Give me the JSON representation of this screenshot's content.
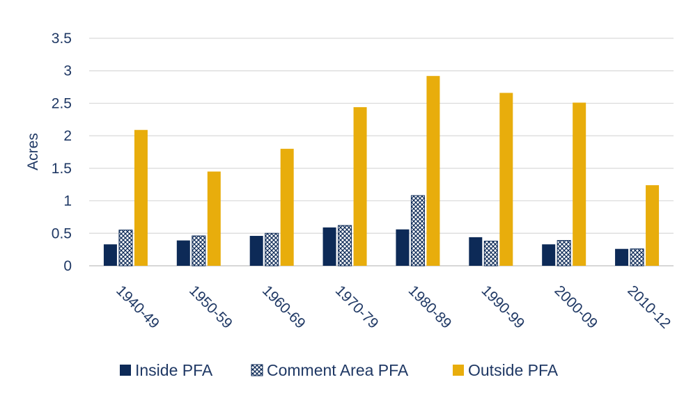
{
  "chart_data": {
    "type": "bar",
    "categories": [
      "1940-49",
      "1950-59",
      "1960-69",
      "1970-79",
      "1980-89",
      "1990-99",
      "2000-09",
      "2010-12"
    ],
    "series": [
      {
        "name": "Inside PFA",
        "values": [
          0.33,
          0.39,
          0.46,
          0.59,
          0.56,
          0.44,
          0.33,
          0.26
        ],
        "color": "#0d2a57",
        "pattern": "solid"
      },
      {
        "name": "Comment Area PFA",
        "values": [
          0.55,
          0.46,
          0.5,
          0.62,
          1.08,
          0.38,
          0.39,
          0.26
        ],
        "color": "#0d2a57",
        "pattern": "crosshatch"
      },
      {
        "name": "Outside PFA",
        "values": [
          2.09,
          1.45,
          1.8,
          2.44,
          2.92,
          2.66,
          2.51,
          1.24
        ],
        "color": "#e8ad0c",
        "pattern": "solid"
      }
    ],
    "ylabel": "Acres",
    "ylim": [
      0,
      3.5
    ],
    "yticks": [
      "0",
      "0.5",
      "1",
      "1.5",
      "2",
      "2.5",
      "3",
      "3.5"
    ],
    "grid": true,
    "legend_position": "bottom"
  }
}
